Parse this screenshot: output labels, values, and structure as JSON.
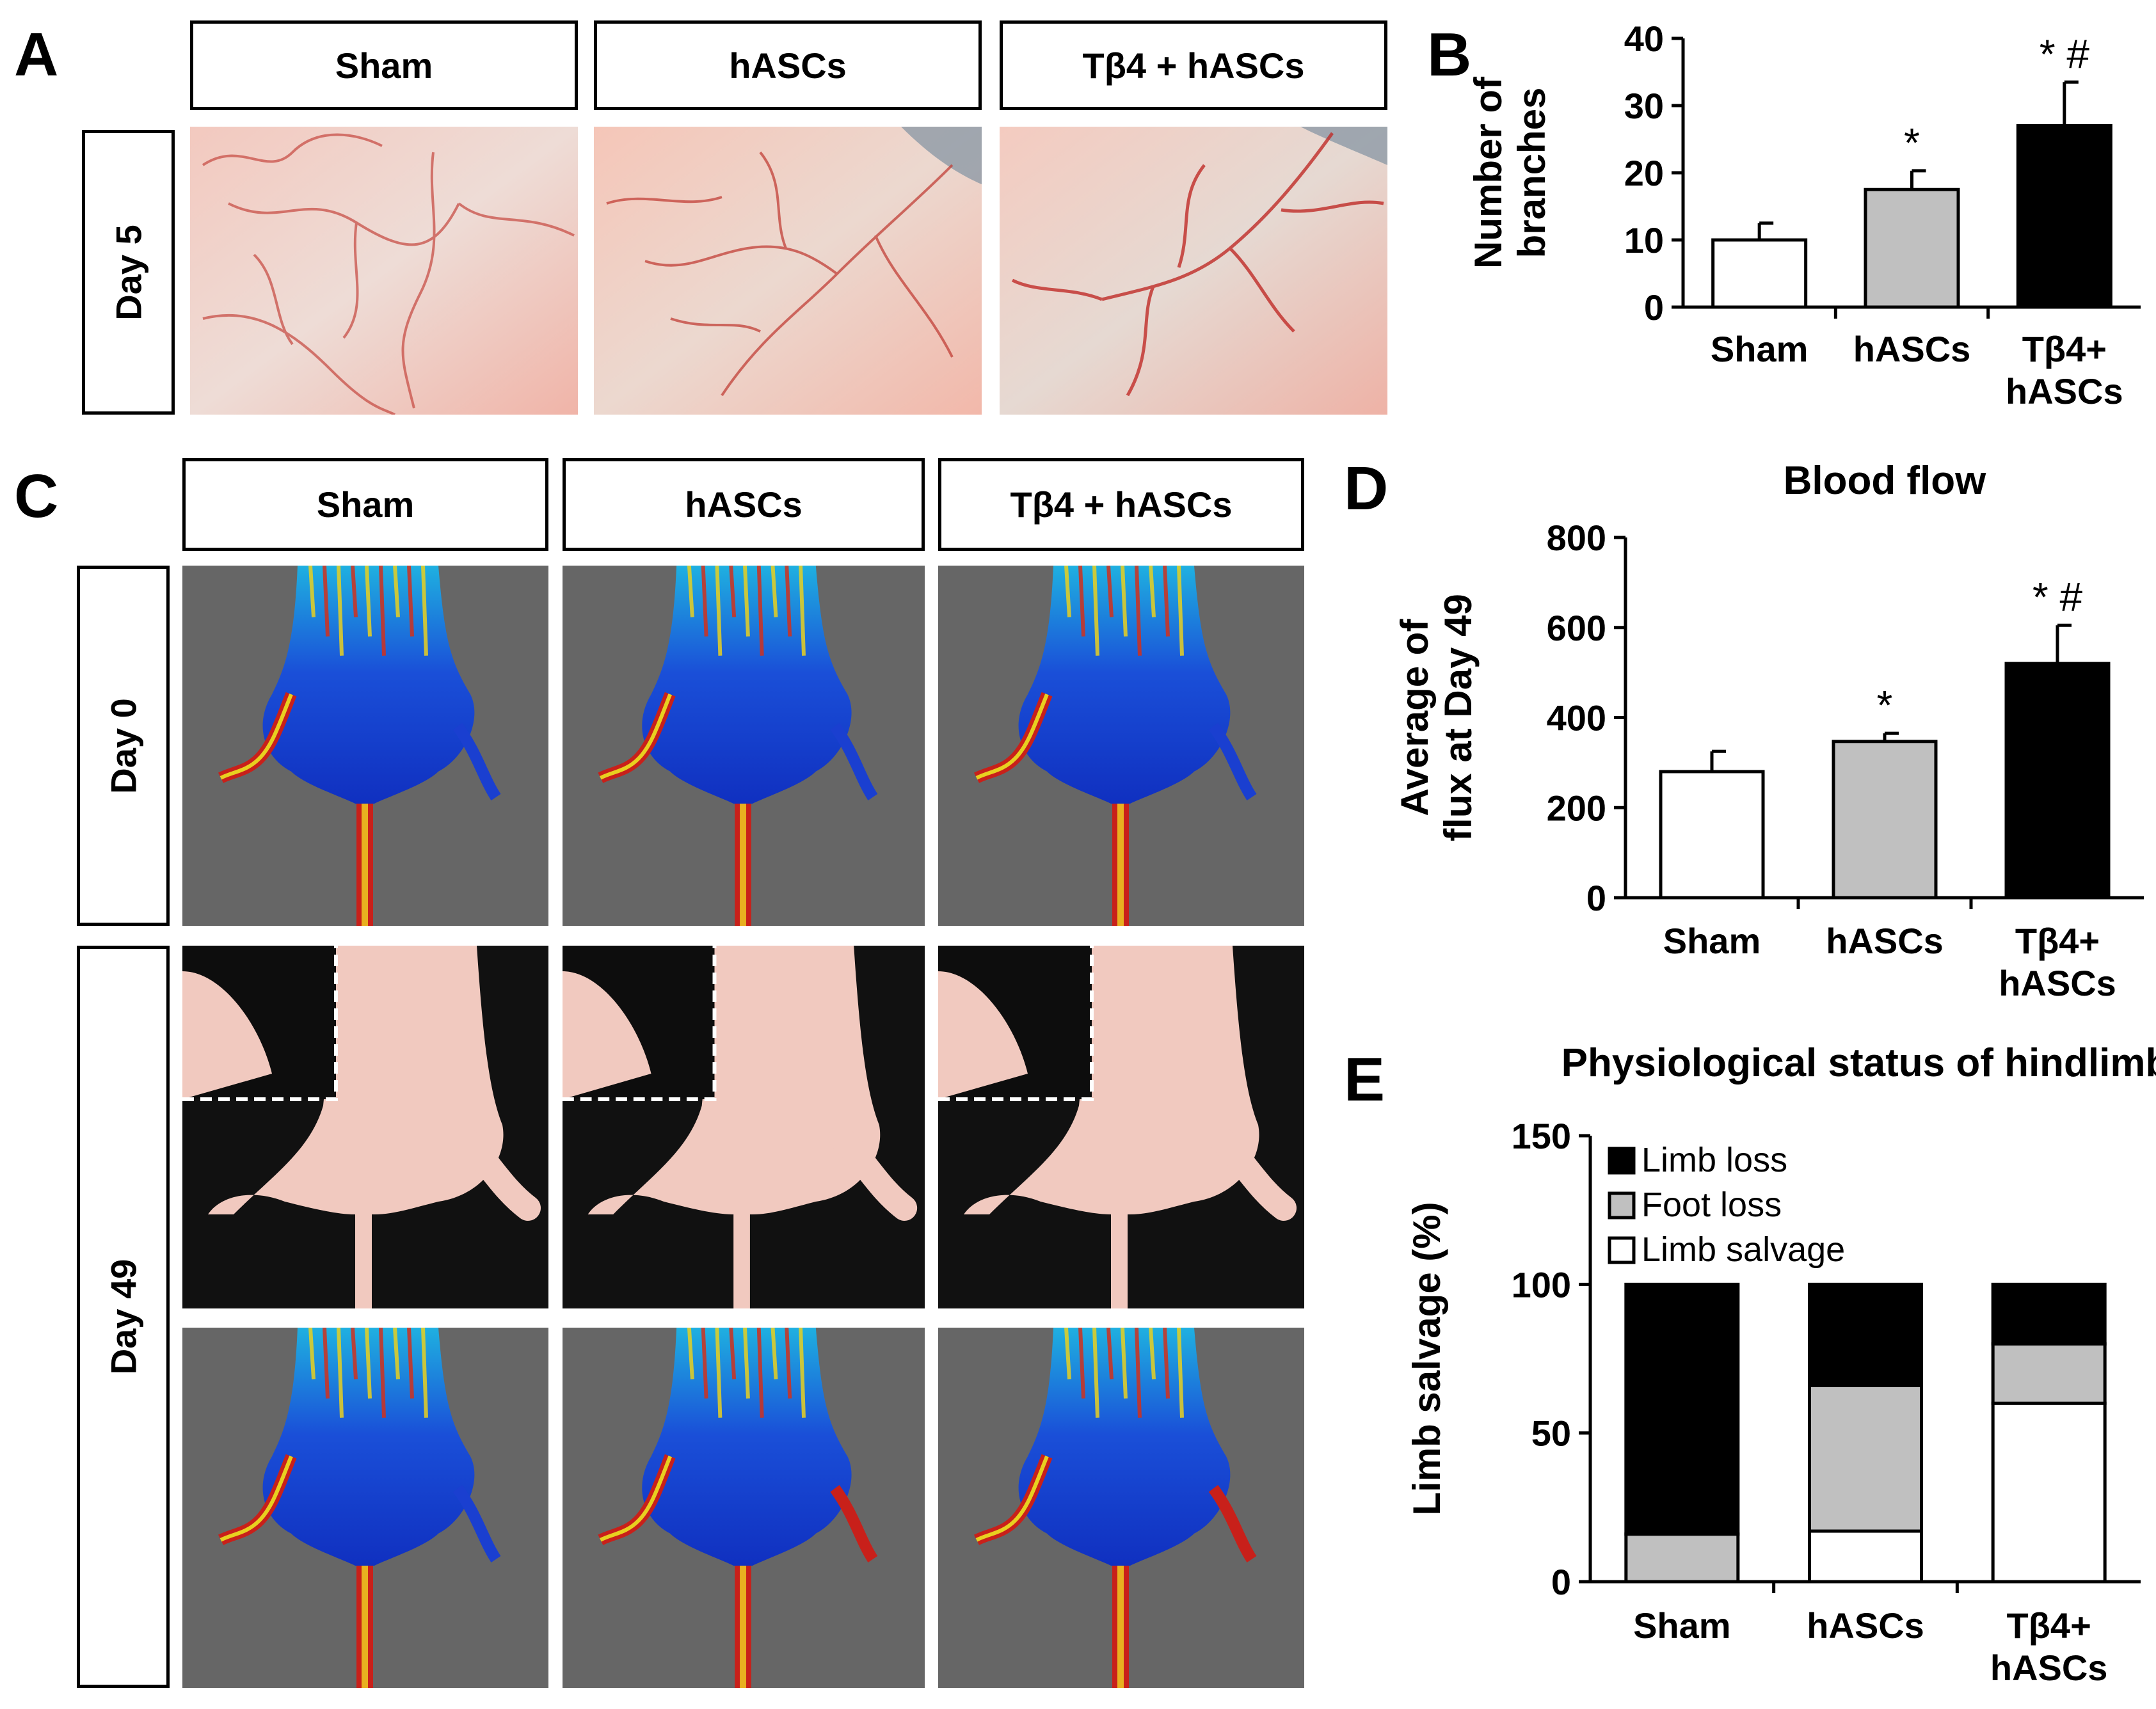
{
  "panels": {
    "a": {
      "letter": "A",
      "columns": [
        "Sham",
        "hASCs",
        "Tβ4 + hASCs"
      ],
      "row_label": "Day 5",
      "image_desc": "vascular-photo"
    },
    "c": {
      "letter": "C",
      "columns": [
        "Sham",
        "hASCs",
        "Tβ4 + hASCs"
      ],
      "row_labels": [
        "Day 0",
        "Day 49"
      ]
    },
    "b": {
      "letter": "B"
    },
    "d": {
      "letter": "D"
    },
    "e": {
      "letter": "E"
    }
  },
  "colors": {
    "sham": "#ffffff",
    "hascs": "#c0c0c0",
    "tb4": "#000000",
    "perfusion_bg": "#666666",
    "photo_bg": "#111111",
    "skin": "#f1c9bf"
  },
  "chart_data": [
    {
      "id": "B",
      "type": "bar",
      "title": "",
      "ylabel": "Number of branches",
      "ylabel_lines": [
        "Number of",
        "branches"
      ],
      "categories": [
        "Sham",
        "hASCs",
        "Tβ4+ hASCs"
      ],
      "category_lines": [
        [
          "Sham"
        ],
        [
          "hASCs"
        ],
        [
          "Tβ4+",
          "hASCs"
        ]
      ],
      "values": [
        10,
        17.5,
        27
      ],
      "errors": [
        2.5,
        2.8,
        6.5
      ],
      "bar_colors": [
        "#ffffff",
        "#c0c0c0",
        "#000000"
      ],
      "significance": [
        "",
        "*",
        "* #"
      ],
      "ylim": [
        0,
        40
      ],
      "yticks": [
        0,
        10,
        20,
        30,
        40
      ]
    },
    {
      "id": "D",
      "type": "bar",
      "title": "Blood flow",
      "ylabel": "Average of flux at Day 49",
      "ylabel_lines": [
        "Average of",
        "flux at Day 49"
      ],
      "categories": [
        "Sham",
        "hASCs",
        "Tβ4+ hASCs"
      ],
      "category_lines": [
        [
          "Sham"
        ],
        [
          "hASCs"
        ],
        [
          "Tβ4+",
          "hASCs"
        ]
      ],
      "values": [
        280,
        347,
        520
      ],
      "errors": [
        45,
        18,
        85
      ],
      "bar_colors": [
        "#ffffff",
        "#c0c0c0",
        "#000000"
      ],
      "significance": [
        "",
        "*",
        "* #"
      ],
      "ylim": [
        0,
        800
      ],
      "yticks": [
        0,
        200,
        400,
        600,
        800
      ]
    },
    {
      "id": "E",
      "type": "bar",
      "stacked": true,
      "title": "Physiological status of hindlimb",
      "ylabel": "Limb salvage (%)",
      "categories": [
        "Sham",
        "hASCs",
        "Tβ4+ hASCs"
      ],
      "category_lines": [
        [
          "Sham"
        ],
        [
          "hASCs"
        ],
        [
          "Tβ4+",
          "hASCs"
        ]
      ],
      "series": [
        {
          "name": "Limb salvage",
          "color": "#ffffff",
          "values": [
            0,
            17,
            60
          ]
        },
        {
          "name": "Foot loss",
          "color": "#c0c0c0",
          "values": [
            16,
            49,
            20
          ]
        },
        {
          "name": "Limb loss",
          "color": "#000000",
          "values": [
            84,
            34,
            20
          ]
        }
      ],
      "legend_order": [
        "Limb loss",
        "Foot loss",
        "Limb salvage"
      ],
      "ylim": [
        0,
        150
      ],
      "yticks": [
        0,
        50,
        100,
        150
      ],
      "legend_position": "top-left"
    }
  ]
}
